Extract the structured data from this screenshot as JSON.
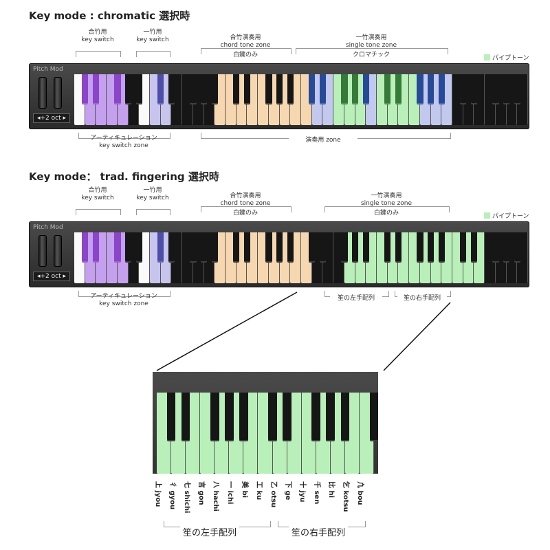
{
  "colors": {
    "white": "#fafafa",
    "black": "#161616",
    "purple": "#c5a0ee",
    "purple_dark": "#8a45c8",
    "lavender": "#c7c5ee",
    "lavender_dark": "#4d4ea8",
    "peach": "#f7d7b0",
    "peach_dark": "#272727",
    "green": "#b9f0b9",
    "green_dark": "#367a3a",
    "blue": "#c3c8ee",
    "blue_dark": "#274a98"
  },
  "section1": {
    "heading": "Key mode : chromatic 選択時",
    "annotations": {
      "chord_ks": [
        "合竹用",
        "key switch"
      ],
      "single_ks": [
        "一竹用",
        "key switch"
      ],
      "chord_zone": [
        "合竹演奏用",
        "chord tone zone",
        "白鍵のみ"
      ],
      "single_zone": [
        "一竹演奏用",
        "single tone zone",
        "クロマチック"
      ],
      "artic": [
        "アーティキュレーション",
        "key switch zone"
      ],
      "play_zone": [
        "演奏用 zone"
      ]
    },
    "legend": "パイプトーン",
    "pitch_mod": "Pitch Mod",
    "octave": "◂+2 oct ▸",
    "white_keys": [
      "white",
      "purple",
      "purple",
      "purple",
      "purple",
      "black",
      "white",
      "lavender",
      "lavender",
      "black",
      "black",
      "black",
      "black",
      "peach",
      "peach",
      "peach",
      "peach",
      "peach",
      "peach",
      "peach",
      "peach",
      "peach",
      "blue",
      "blue",
      "green",
      "green",
      "green",
      "blue",
      "green",
      "green",
      "green",
      "green",
      "blue",
      "blue",
      "blue",
      "black",
      "black",
      "black",
      "black",
      "black",
      "black",
      "black"
    ],
    "black_keys": [
      {
        "after": 0,
        "c": "purple_dark"
      },
      {
        "after": 1,
        "c": "purple_dark"
      },
      {
        "after": 3,
        "c": "purple_dark"
      },
      {
        "after": 4,
        "c": "black"
      },
      {
        "after": 5,
        "c": "black"
      },
      {
        "after": 7,
        "c": "lavender_dark"
      },
      {
        "after": 8,
        "c": "black"
      },
      {
        "after": 10,
        "c": "black"
      },
      {
        "after": 11,
        "c": "black"
      },
      {
        "after": 12,
        "c": "black"
      },
      {
        "after": 14,
        "c": "black"
      },
      {
        "after": 15,
        "c": "black"
      },
      {
        "after": 17,
        "c": "black"
      },
      {
        "after": 18,
        "c": "black"
      },
      {
        "after": 19,
        "c": "black"
      },
      {
        "after": 21,
        "c": "blue_dark"
      },
      {
        "after": 22,
        "c": "blue_dark"
      },
      {
        "after": 24,
        "c": "green_dark"
      },
      {
        "after": 25,
        "c": "green_dark"
      },
      {
        "after": 26,
        "c": "blue_dark"
      },
      {
        "after": 28,
        "c": "green_dark"
      },
      {
        "after": 29,
        "c": "green_dark"
      },
      {
        "after": 31,
        "c": "blue_dark"
      },
      {
        "after": 32,
        "c": "blue_dark"
      },
      {
        "after": 33,
        "c": "blue_dark"
      },
      {
        "after": 35,
        "c": "black"
      },
      {
        "after": 36,
        "c": "black"
      },
      {
        "after": 38,
        "c": "black"
      },
      {
        "after": 39,
        "c": "black"
      },
      {
        "after": 40,
        "c": "black"
      }
    ]
  },
  "section2": {
    "heading": "Key mode： trad. fingering 選択時",
    "annotations": {
      "chord_ks": [
        "合竹用",
        "key switch"
      ],
      "single_ks": [
        "一竹用",
        "key switch"
      ],
      "chord_zone": [
        "合竹演奏用",
        "chord tone zone",
        "白鍵のみ"
      ],
      "single_zone": [
        "一竹演奏用",
        "single tone zone",
        "白鍵のみ"
      ],
      "artic": [
        "アーティキュレーション",
        "key switch zone"
      ],
      "left_hand": "笙の左手配列",
      "right_hand": "笙の右手配列"
    },
    "legend": "パイプトーン",
    "pitch_mod": "Pitch Mod",
    "octave": "◂+2 oct ▸",
    "white_keys": [
      "white",
      "purple",
      "purple",
      "purple",
      "purple",
      "black",
      "white",
      "lavender",
      "lavender",
      "black",
      "black",
      "black",
      "black",
      "peach",
      "peach",
      "peach",
      "peach",
      "peach",
      "peach",
      "peach",
      "peach",
      "peach",
      "black",
      "black",
      "black",
      "green",
      "green",
      "green",
      "green",
      "green",
      "green",
      "green",
      "green",
      "green",
      "green",
      "green",
      "green",
      "green",
      "black",
      "black",
      "black",
      "black"
    ],
    "black_keys": [
      {
        "after": 0,
        "c": "purple_dark"
      },
      {
        "after": 1,
        "c": "purple_dark"
      },
      {
        "after": 3,
        "c": "purple_dark"
      },
      {
        "after": 4,
        "c": "black"
      },
      {
        "after": 5,
        "c": "black"
      },
      {
        "after": 7,
        "c": "lavender_dark"
      },
      {
        "after": 8,
        "c": "black"
      },
      {
        "after": 10,
        "c": "black"
      },
      {
        "after": 11,
        "c": "black"
      },
      {
        "after": 12,
        "c": "black"
      },
      {
        "after": 14,
        "c": "black"
      },
      {
        "after": 15,
        "c": "black"
      },
      {
        "after": 17,
        "c": "black"
      },
      {
        "after": 18,
        "c": "black"
      },
      {
        "after": 19,
        "c": "black"
      },
      {
        "after": 21,
        "c": "black"
      },
      {
        "after": 22,
        "c": "black"
      },
      {
        "after": 24,
        "c": "black"
      },
      {
        "after": 25,
        "c": "black"
      },
      {
        "after": 26,
        "c": "black"
      },
      {
        "after": 28,
        "c": "black"
      },
      {
        "after": 29,
        "c": "black"
      },
      {
        "after": 31,
        "c": "black"
      },
      {
        "after": 32,
        "c": "black"
      },
      {
        "after": 33,
        "c": "black"
      },
      {
        "after": 35,
        "c": "black"
      },
      {
        "after": 36,
        "c": "black"
      },
      {
        "after": 38,
        "c": "black"
      },
      {
        "after": 39,
        "c": "black"
      },
      {
        "after": 40,
        "c": "black"
      }
    ]
  },
  "zoom": {
    "white_keys": [
      "green",
      "green",
      "green",
      "green",
      "green",
      "green",
      "green",
      "green",
      "green",
      "green",
      "green",
      "green",
      "green",
      "green",
      "green"
    ],
    "black_keys": [
      0,
      1,
      3,
      4,
      5,
      7,
      8,
      10,
      11,
      12,
      14
    ],
    "labels": [
      "上 jyou",
      "彳 gyou",
      "七 shichi",
      "言 gon",
      "八 hachi",
      "一 ichi",
      "美 bi",
      "工 ku",
      "乙 otsu",
      "下 ge",
      "十 jyu",
      "千 sen",
      "比 hi",
      "乞 kotsu",
      "凢 bou"
    ],
    "left_hand": "笙の左手配列",
    "right_hand": "笙の右手配列"
  }
}
